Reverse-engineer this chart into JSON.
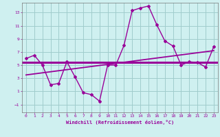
{
  "xlabel": "Windchill (Refroidissement éolien,°C)",
  "background_color": "#cff0f0",
  "grid_color": "#a0cccc",
  "line_color": "#990099",
  "xlim": [
    -0.5,
    23.5
  ],
  "ylim": [
    -2.2,
    14.5
  ],
  "yticks": [
    -1,
    1,
    3,
    5,
    7,
    9,
    11,
    13
  ],
  "xticks": [
    0,
    1,
    2,
    3,
    4,
    5,
    6,
    7,
    8,
    9,
    10,
    11,
    12,
    13,
    14,
    15,
    16,
    17,
    18,
    19,
    20,
    21,
    22,
    23
  ],
  "hours": [
    0,
    1,
    2,
    3,
    4,
    5,
    6,
    7,
    8,
    9,
    10,
    11,
    12,
    13,
    14,
    15,
    16,
    17,
    18,
    19,
    20,
    21,
    22,
    23
  ],
  "temp_line": [
    6.0,
    6.5,
    5.0,
    2.0,
    2.2,
    5.5,
    3.2,
    0.8,
    0.5,
    -0.5,
    5.0,
    5.0,
    8.0,
    13.3,
    13.7,
    14.0,
    11.2,
    8.7,
    7.9,
    5.0,
    5.5,
    5.4,
    4.7,
    7.8
  ],
  "reg_line_x": [
    0,
    23
  ],
  "reg_line_y": [
    3.5,
    7.2
  ],
  "flat_line_y": 5.4
}
